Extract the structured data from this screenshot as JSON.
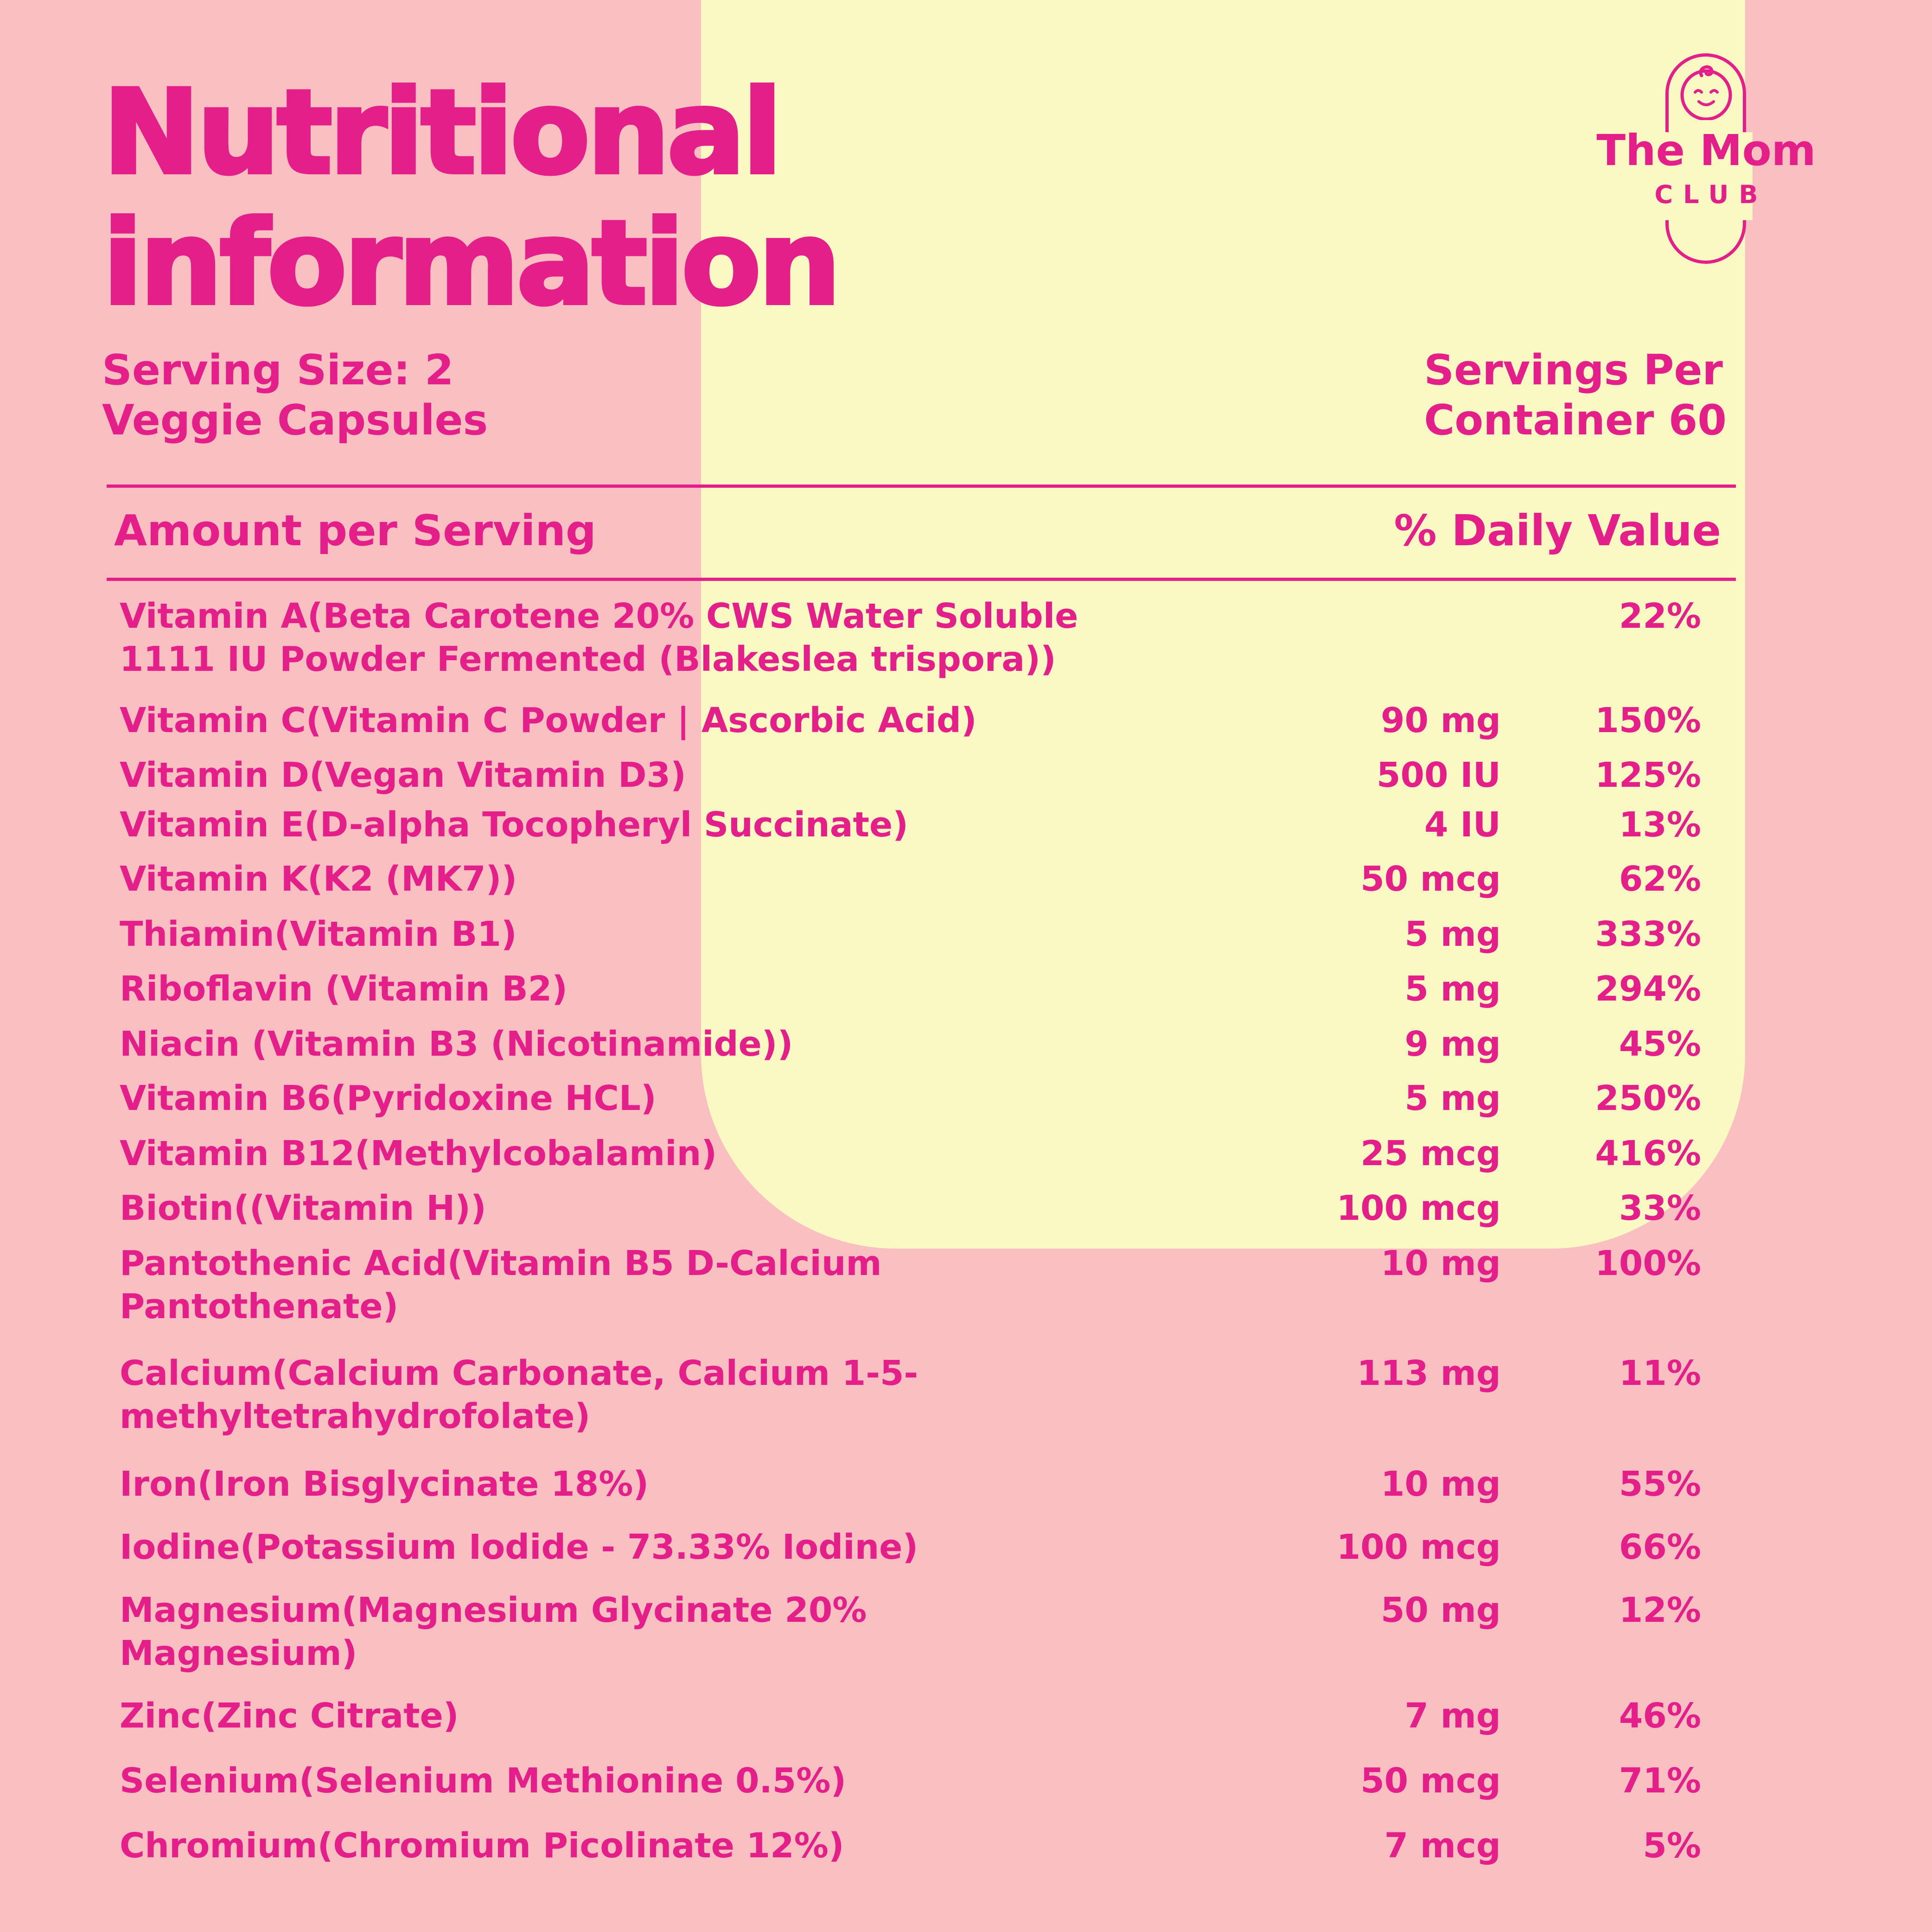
{
  "colors": {
    "background": "#f9bfc1",
    "accent_shape": "#fbf9c3",
    "text": "#e41f8a"
  },
  "title": {
    "line1": "Nutritional",
    "line2": "information"
  },
  "brand": {
    "name": "The Mom",
    "sub": "CLUB",
    "icon": "baby-face-pill-logo"
  },
  "serving": {
    "line1": "Serving Size: 2",
    "line2": "Veggie Capsules"
  },
  "servings_per": {
    "line1": "Servings Per",
    "line2": "Container 60"
  },
  "table": {
    "header_amount": "Amount per Serving",
    "header_dv": "% Daily Value",
    "rows": [
      {
        "name": "Vitamin A(Beta Carotene 20% CWS Water Soluble 1111 IU Powder Fermented (Blakeslea trispora))",
        "amount": "",
        "dv": "22%"
      },
      {
        "name": "Vitamin C(Vitamin C Powder | Ascorbic Acid)",
        "amount": "90 mg",
        "dv": "150%"
      },
      {
        "name": "Vitamin D(Vegan Vitamin D3)",
        "amount": "500 IU",
        "dv": "125%"
      },
      {
        "name": "Vitamin E(D-alpha Tocopheryl Succinate)",
        "amount": "4 IU",
        "dv": "13%"
      },
      {
        "name": "Vitamin K(K2 (MK7))",
        "amount": "50 mcg",
        "dv": "62%"
      },
      {
        "name": "Thiamin(Vitamin B1)",
        "amount": "5 mg",
        "dv": "333%"
      },
      {
        "name": "Riboflavin (Vitamin B2)",
        "amount": "5 mg",
        "dv": "294%"
      },
      {
        "name": "Niacin (Vitamin B3 (Nicotinamide))",
        "amount": "9 mg",
        "dv": "45%"
      },
      {
        "name": "Vitamin B6(Pyridoxine HCL)",
        "amount": "5 mg",
        "dv": "250%"
      },
      {
        "name": "Vitamin B12(Methylcobalamin)",
        "amount": "25 mcg",
        "dv": "416%"
      },
      {
        "name": "Biotin((Vitamin H))",
        "amount": "100 mcg",
        "dv": "33%"
      },
      {
        "name": "Pantothenic Acid(Vitamin B5 D-Calcium Pantothenate)",
        "amount": "10 mg",
        "dv": "100%"
      },
      {
        "name": "Calcium(Calcium Carbonate, Calcium 1-5-methyltetrahydrofolate)",
        "amount": "113 mg",
        "dv": "11%"
      },
      {
        "name": "Iron(Iron Bisglycinate 18%)",
        "amount": "10 mg",
        "dv": "55%"
      },
      {
        "name": "Iodine(Potassium Iodide - 73.33% Iodine)",
        "amount": "100 mcg",
        "dv": "66%"
      },
      {
        "name": "Magnesium(Magnesium Glycinate 20% Magnesium)",
        "amount": "50 mg",
        "dv": "12%"
      },
      {
        "name": "Zinc(Zinc Citrate)",
        "amount": "7 mg",
        "dv": "46%"
      },
      {
        "name": "Selenium(Selenium Methionine 0.5%)",
        "amount": "50 mcg",
        "dv": "71%"
      },
      {
        "name": "Chromium(Chromium Picolinate 12%)",
        "amount": "7 mcg",
        "dv": "5%"
      }
    ]
  }
}
